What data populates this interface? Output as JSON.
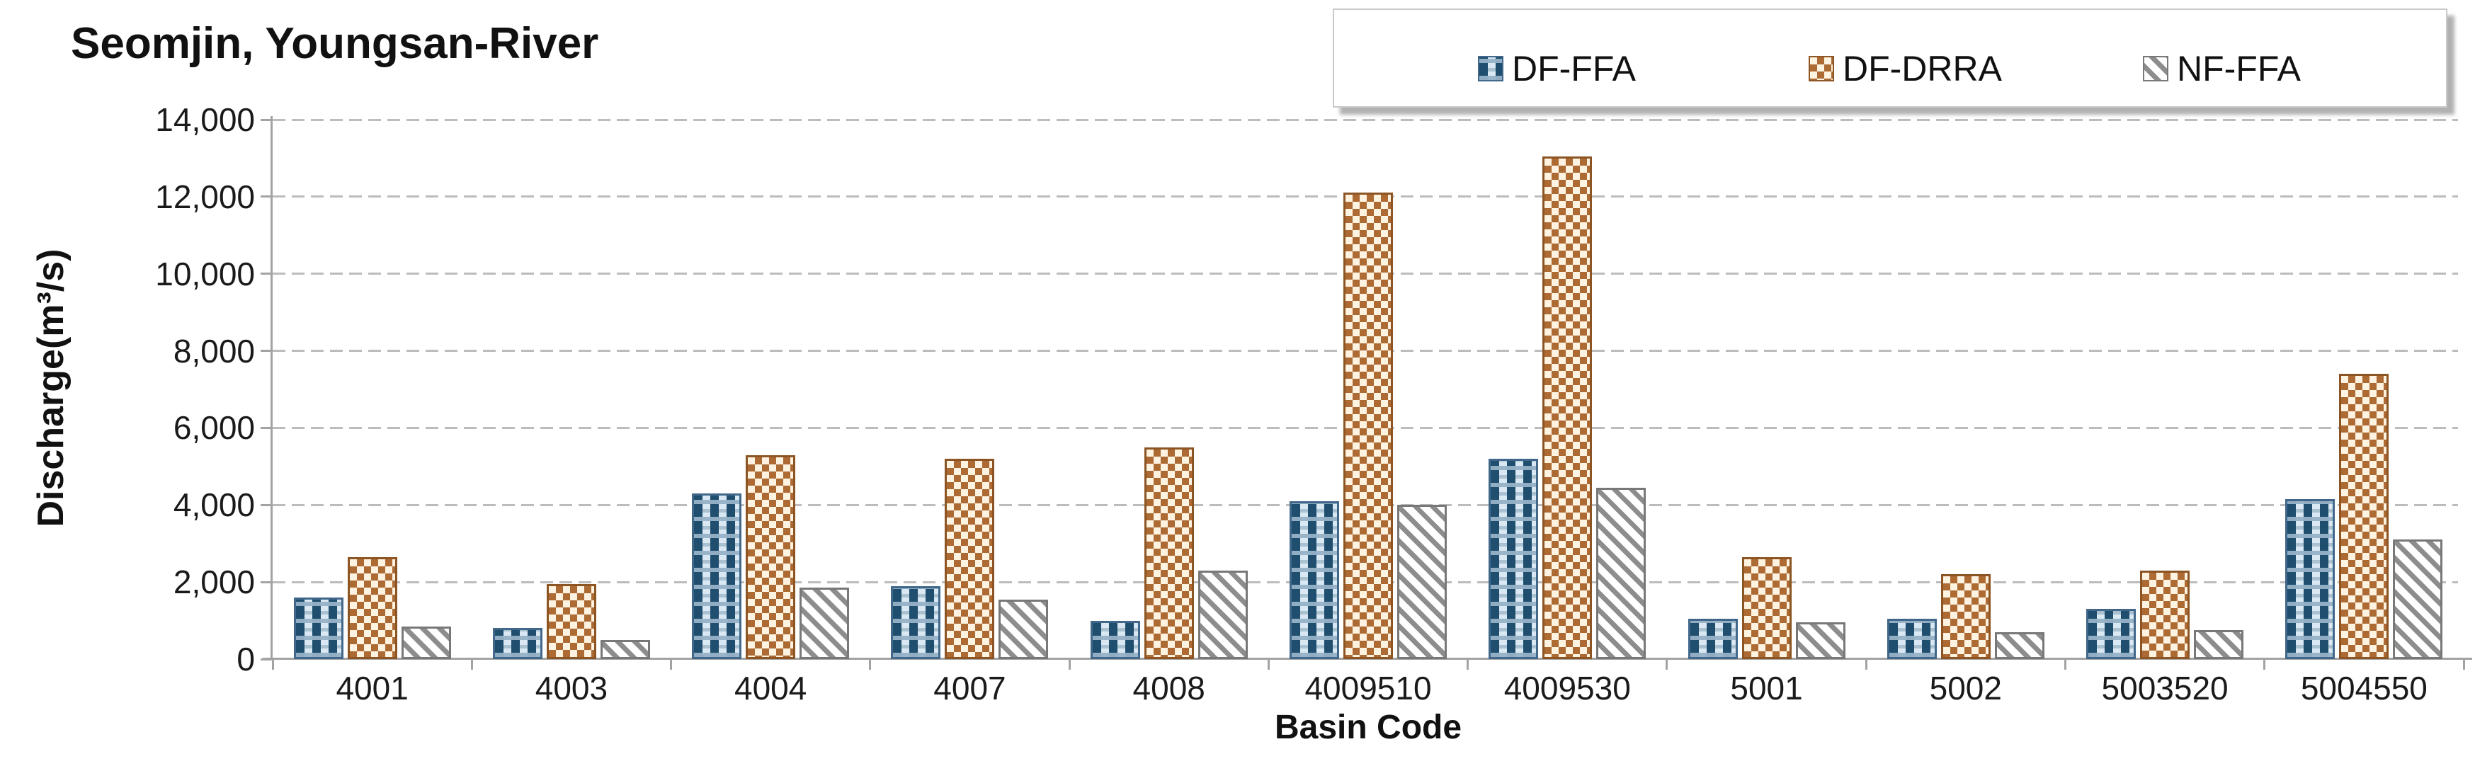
{
  "chart_data": {
    "type": "bar",
    "title": "Seomjin, Youngsan-River",
    "xlabel": "Basin Code",
    "ylabel": "Discharge(m³/s)",
    "ylim": [
      0,
      14000
    ],
    "ytick_step": 2000,
    "ytick_labels": [
      "0",
      "2,000",
      "4,000",
      "6,000",
      "8,000",
      "10,000",
      "12,000",
      "14,000"
    ],
    "grid": "horizontal dashed gridlines",
    "legend_position": "top-right",
    "categories": [
      "4001",
      "4003",
      "4004",
      "4007",
      "4008",
      "4009510",
      "4009530",
      "5001",
      "5002",
      "5003520",
      "5004550"
    ],
    "series": [
      {
        "name": "DF-FFA",
        "pattern": "blue plaid check",
        "color": "#1f4e6e",
        "values": [
          1600,
          800,
          4300,
          1900,
          1000,
          4100,
          5200,
          1050,
          1050,
          1300,
          4150
        ]
      },
      {
        "name": "DF-DRRA",
        "pattern": "orange checkerboard",
        "color": "#ae6a33",
        "values": [
          2650,
          1950,
          5300,
          5200,
          5500,
          12100,
          13050,
          2650,
          2200,
          2300,
          7400
        ]
      },
      {
        "name": "NF-FFA",
        "pattern": "gray diagonal hatch",
        "color": "#8d8d8d",
        "values": [
          850,
          500,
          1850,
          1550,
          2300,
          4000,
          4450,
          950,
          700,
          750,
          3100
        ]
      }
    ]
  }
}
